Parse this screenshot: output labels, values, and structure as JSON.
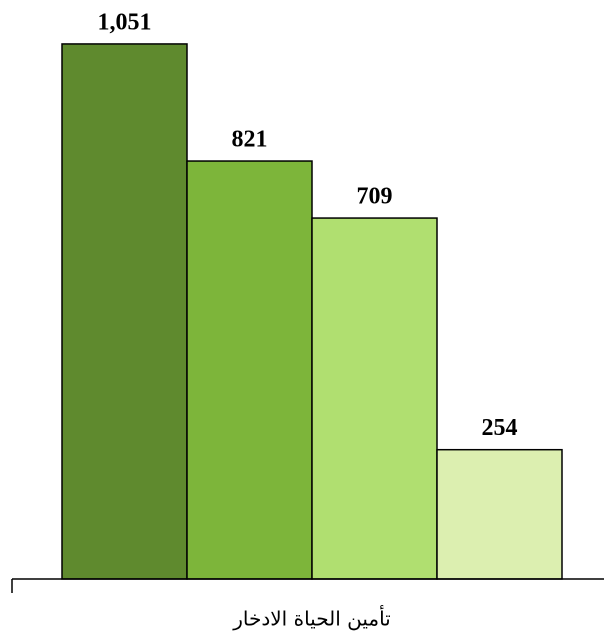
{
  "chart_data": {
    "type": "bar",
    "categories": [
      "تأمين الحياة الادخار"
    ],
    "series": [
      {
        "color": "#5f8a2e",
        "values": [
          1051
        ],
        "value_labels": [
          "1,051"
        ]
      },
      {
        "color": "#7db53a",
        "values": [
          821
        ],
        "value_labels": [
          "821"
        ]
      },
      {
        "color": "#b0df70",
        "values": [
          709
        ],
        "value_labels": [
          "709"
        ]
      },
      {
        "color": "#dcefb0",
        "values": [
          254
        ],
        "value_labels": [
          "254"
        ]
      }
    ],
    "ylim": [
      0,
      1100
    ]
  }
}
